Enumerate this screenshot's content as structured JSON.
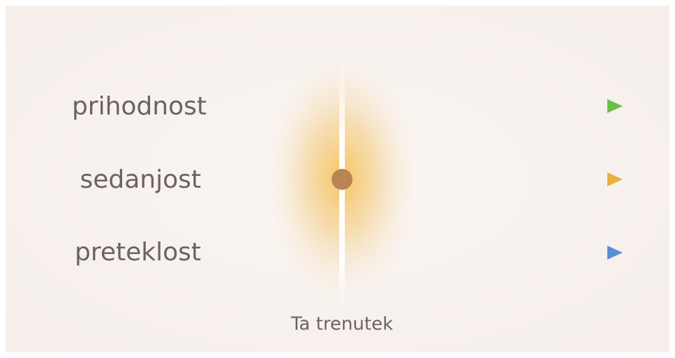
{
  "lines": [
    {
      "label": "prihodnost"
    },
    {
      "label": "sedanjost"
    },
    {
      "label": "preteklost"
    }
  ],
  "caption": "Ta trenutek"
}
